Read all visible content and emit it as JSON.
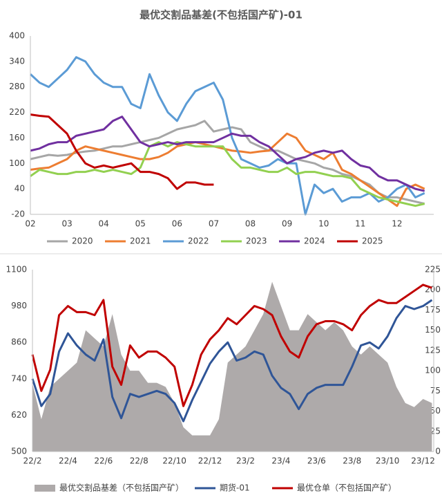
{
  "chart_data": [
    {
      "type": "line",
      "title": "最优交割品基差(不包括国产矿)-01",
      "xlim": [
        2,
        13
      ],
      "xticks": [
        {
          "value": 2,
          "label": "02"
        },
        {
          "value": 3,
          "label": "03"
        },
        {
          "value": 4,
          "label": "04"
        },
        {
          "value": 5,
          "label": "05"
        },
        {
          "value": 6,
          "label": "06"
        },
        {
          "value": 7,
          "label": "07"
        },
        {
          "value": 8,
          "label": "08"
        },
        {
          "value": 9,
          "label": "09"
        },
        {
          "value": 10,
          "label": "10"
        },
        {
          "value": 11,
          "label": "11"
        },
        {
          "value": 12,
          "label": "12"
        }
      ],
      "ylim": [
        -20,
        400
      ],
      "yticks": [
        -20,
        40,
        100,
        160,
        220,
        280,
        340,
        400
      ],
      "x": [
        2,
        2.25,
        2.5,
        2.75,
        3,
        3.25,
        3.5,
        3.75,
        4,
        4.25,
        4.5,
        4.75,
        5,
        5.25,
        5.5,
        5.75,
        6,
        6.25,
        6.5,
        6.75,
        7,
        7.25,
        7.5,
        7.75,
        8,
        8.25,
        8.5,
        8.75,
        9,
        9.25,
        9.5,
        9.75,
        10,
        10.25,
        10.5,
        10.75,
        11,
        11.25,
        11.5,
        11.75,
        12,
        12.25,
        12.5,
        12.75
      ],
      "series": [
        {
          "name": "2020",
          "color": "#a6a6a6",
          "values": [
            110,
            115,
            120,
            118,
            120,
            125,
            128,
            130,
            135,
            140,
            140,
            145,
            150,
            155,
            160,
            170,
            180,
            185,
            190,
            200,
            175,
            180,
            185,
            180,
            150,
            140,
            130,
            130,
            120,
            110,
            105,
            100,
            90,
            85,
            75,
            70,
            60,
            50,
            30,
            20,
            20,
            15,
            10,
            5
          ]
        },
        {
          "name": "2021",
          "color": "#ed7d31",
          "values": [
            85,
            88,
            90,
            100,
            110,
            130,
            140,
            135,
            130,
            125,
            120,
            115,
            110,
            110,
            115,
            125,
            140,
            145,
            150,
            145,
            140,
            135,
            130,
            128,
            125,
            128,
            130,
            150,
            170,
            160,
            130,
            120,
            110,
            125,
            85,
            75,
            60,
            45,
            30,
            15,
            0,
            40,
            50,
            40
          ]
        },
        {
          "name": "2022",
          "color": "#5b9bd5",
          "values": [
            310,
            290,
            280,
            300,
            320,
            350,
            340,
            310,
            290,
            280,
            280,
            240,
            230,
            310,
            260,
            220,
            200,
            240,
            270,
            280,
            290,
            250,
            160,
            110,
            100,
            90,
            95,
            110,
            100,
            100,
            -20,
            50,
            30,
            40,
            10,
            20,
            20,
            30,
            10,
            20,
            40,
            50,
            20,
            30
          ]
        },
        {
          "name": "2023",
          "color": "#92d050",
          "values": [
            70,
            85,
            80,
            75,
            75,
            80,
            80,
            85,
            80,
            85,
            80,
            75,
            90,
            140,
            150,
            140,
            150,
            145,
            140,
            140,
            140,
            140,
            110,
            90,
            90,
            85,
            80,
            80,
            90,
            75,
            80,
            80,
            75,
            70,
            70,
            65,
            40,
            30,
            20,
            15,
            10,
            5,
            0,
            5
          ]
        },
        {
          "name": "2024",
          "color": "#7030a0",
          "values": [
            130,
            135,
            145,
            150,
            150,
            165,
            170,
            175,
            180,
            200,
            210,
            180,
            150,
            140,
            145,
            150,
            145,
            150,
            150,
            150,
            150,
            160,
            170,
            165,
            165,
            150,
            140,
            120,
            100,
            110,
            115,
            125,
            130,
            125,
            130,
            110,
            95,
            90,
            70,
            60,
            60,
            50,
            40,
            35
          ]
        },
        {
          "name": "2025",
          "color": "#c00000",
          "values": [
            215,
            212,
            210,
            190,
            170,
            130,
            100,
            90,
            95,
            90,
            95,
            100,
            80,
            80,
            75,
            65,
            40,
            55,
            55,
            50,
            50,
            null,
            null,
            null,
            null,
            null,
            null,
            null,
            null,
            null,
            null,
            null,
            null,
            null,
            null,
            null,
            null,
            null,
            null,
            null,
            null,
            null,
            null,
            null
          ]
        }
      ]
    },
    {
      "type": "line",
      "xlim": [
        0,
        22.6
      ],
      "xticks": [
        {
          "value": 0,
          "label": "22/2"
        },
        {
          "value": 2,
          "label": "22/4"
        },
        {
          "value": 4,
          "label": "22/6"
        },
        {
          "value": 6,
          "label": "22/8"
        },
        {
          "value": 8,
          "label": "22/10"
        },
        {
          "value": 10,
          "label": "22/12"
        },
        {
          "value": 12,
          "label": "23/2"
        },
        {
          "value": 14,
          "label": "23/4"
        },
        {
          "value": 16,
          "label": "23/6"
        },
        {
          "value": 18,
          "label": "23/8"
        },
        {
          "value": 20,
          "label": "23/10"
        },
        {
          "value": 22,
          "label": "23/12"
        }
      ],
      "ylim": [
        500,
        1100
      ],
      "yticks": [
        500,
        620,
        740,
        860,
        980,
        1100
      ],
      "y2lim": [
        0,
        225
      ],
      "y2ticks": [
        0,
        25,
        50,
        75,
        100,
        125,
        150,
        175,
        200,
        225
      ],
      "x": [
        0,
        0.5,
        1,
        1.5,
        2,
        2.5,
        3,
        3.5,
        4,
        4.5,
        5,
        5.5,
        6,
        6.5,
        7,
        7.5,
        8,
        8.5,
        9,
        9.5,
        10,
        10.5,
        11,
        11.5,
        12,
        12.5,
        13,
        13.5,
        14,
        14.5,
        15,
        15.5,
        16,
        16.5,
        17,
        17.5,
        18,
        18.5,
        19,
        19.5,
        20,
        20.5,
        21,
        21.5,
        22,
        22.5
      ],
      "series": [
        {
          "name": "最优交割品基差（不包括国产矿）",
          "type": "area",
          "axis": "y2",
          "color": "#aeaaaa",
          "values": [
            84,
            40,
            80,
            90,
            100,
            110,
            150,
            140,
            130,
            170,
            120,
            100,
            100,
            85,
            85,
            80,
            60,
            30,
            20,
            20,
            20,
            40,
            110,
            120,
            130,
            150,
            170,
            210,
            180,
            150,
            150,
            170,
            160,
            150,
            160,
            150,
            130,
            120,
            130,
            120,
            110,
            80,
            60,
            55,
            65,
            60
          ]
        },
        {
          "name": "期货-01",
          "color": "#2f5597",
          "values": [
            740,
            650,
            690,
            830,
            890,
            850,
            820,
            800,
            870,
            680,
            610,
            690,
            680,
            690,
            700,
            690,
            660,
            600,
            670,
            730,
            790,
            830,
            860,
            800,
            810,
            830,
            820,
            750,
            710,
            690,
            640,
            690,
            710,
            720,
            720,
            720,
            780,
            850,
            860,
            840,
            880,
            940,
            980,
            970,
            980,
            1000
          ]
        },
        {
          "name": "最优仓单（不包括国产矿）",
          "color": "#c00000",
          "values": [
            820,
            700,
            770,
            950,
            980,
            960,
            960,
            950,
            1000,
            780,
            720,
            850,
            810,
            830,
            830,
            810,
            780,
            650,
            720,
            820,
            870,
            900,
            940,
            920,
            950,
            980,
            970,
            950,
            880,
            830,
            810,
            880,
            920,
            930,
            930,
            920,
            900,
            950,
            980,
            1000,
            990,
            990,
            1010,
            1030,
            1050,
            1040
          ]
        }
      ]
    }
  ]
}
